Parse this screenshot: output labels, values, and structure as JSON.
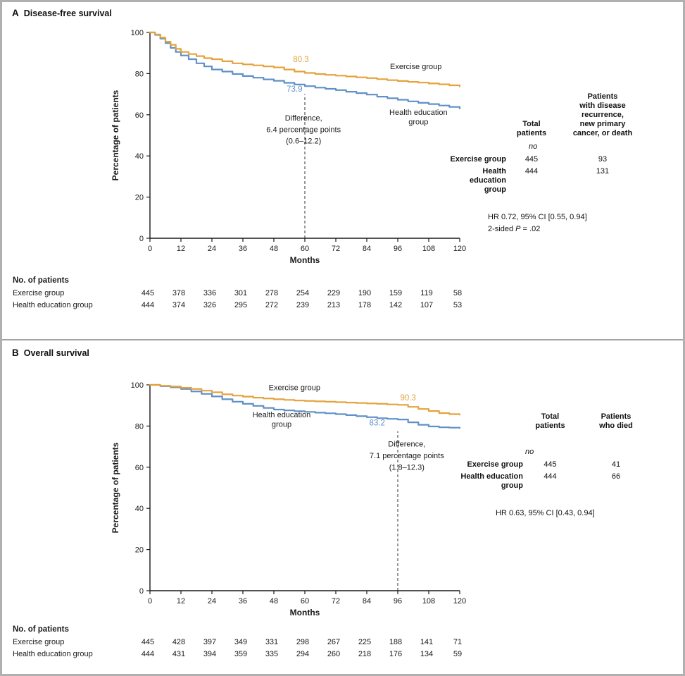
{
  "figure": {
    "title_a_letter": "A",
    "title_a": "Disease-free survival",
    "title_b_letter": "B",
    "title_b": "Overall survival"
  },
  "colors": {
    "exercise": "#E5A23C",
    "health": "#6090C7",
    "axis": "#1a1a1a",
    "dashed": "#555555"
  },
  "chart_data": [
    {
      "type": "line",
      "panel": "A",
      "title": "Disease-free survival",
      "xlabel": "Months",
      "ylabel": "Percentage of patients",
      "xlim": [
        0,
        120
      ],
      "ylim": [
        0,
        100
      ],
      "xticks": [
        0,
        12,
        24,
        36,
        48,
        60,
        72,
        84,
        96,
        108,
        120
      ],
      "yticks": [
        0,
        20,
        40,
        60,
        80,
        100
      ],
      "grid": false,
      "legend_position": "inline-annotations",
      "series": [
        {
          "name": "Exercise group",
          "color_key": "exercise",
          "step": true,
          "points": [
            [
              0,
              100
            ],
            [
              2,
              99
            ],
            [
              4,
              97.5
            ],
            [
              6,
              95.5
            ],
            [
              8,
              94
            ],
            [
              10,
              92
            ],
            [
              12,
              90.5
            ],
            [
              15,
              89.5
            ],
            [
              18,
              88.5
            ],
            [
              21,
              87.5
            ],
            [
              24,
              87
            ],
            [
              28,
              86
            ],
            [
              32,
              85
            ],
            [
              36,
              84.5
            ],
            [
              40,
              84
            ],
            [
              44,
              83.5
            ],
            [
              48,
              83
            ],
            [
              52,
              82
            ],
            [
              56,
              81
            ],
            [
              60,
              80.3
            ],
            [
              64,
              79.8
            ],
            [
              68,
              79.4
            ],
            [
              72,
              79
            ],
            [
              76,
              78.6
            ],
            [
              80,
              78.2
            ],
            [
              84,
              77.8
            ],
            [
              88,
              77.3
            ],
            [
              92,
              76.8
            ],
            [
              96,
              76.4
            ],
            [
              100,
              76
            ],
            [
              104,
              75.6
            ],
            [
              108,
              75.2
            ],
            [
              112,
              74.8
            ],
            [
              116,
              74.3
            ],
            [
              120,
              73.8
            ]
          ]
        },
        {
          "name": "Health education group",
          "color_key": "health",
          "step": true,
          "points": [
            [
              0,
              100
            ],
            [
              2,
              98.8
            ],
            [
              4,
              97
            ],
            [
              6,
              94.8
            ],
            [
              8,
              92.5
            ],
            [
              10,
              90.5
            ],
            [
              12,
              88.8
            ],
            [
              15,
              87
            ],
            [
              18,
              85
            ],
            [
              21,
              83.5
            ],
            [
              24,
              82
            ],
            [
              28,
              81
            ],
            [
              32,
              79.8
            ],
            [
              36,
              78.8
            ],
            [
              40,
              78
            ],
            [
              44,
              77.2
            ],
            [
              48,
              76.5
            ],
            [
              52,
              75.5
            ],
            [
              56,
              74.7
            ],
            [
              60,
              73.9
            ],
            [
              64,
              73.2
            ],
            [
              68,
              72.6
            ],
            [
              72,
              72
            ],
            [
              76,
              71.2
            ],
            [
              80,
              70.5
            ],
            [
              84,
              69.8
            ],
            [
              88,
              68.8
            ],
            [
              92,
              68
            ],
            [
              96,
              67.3
            ],
            [
              100,
              66.5
            ],
            [
              104,
              65.8
            ],
            [
              108,
              65.2
            ],
            [
              112,
              64.5
            ],
            [
              116,
              63.8
            ],
            [
              120,
              63
            ]
          ]
        }
      ],
      "dashed_line": {
        "month": 60,
        "from_pct": 0,
        "to_pct": 70
      },
      "annotations": [
        {
          "text": "80.3",
          "month": 58.5,
          "pct": 85.6,
          "color_key": "exercise"
        },
        {
          "text": "73.9",
          "month": 56,
          "pct": 71.2,
          "color_key": "health"
        },
        {
          "text": "Exercise group",
          "month": 103,
          "pct": 82.2
        },
        {
          "text": "Health education",
          "month": 104,
          "pct": 60
        },
        {
          "text": "group",
          "month": 104,
          "pct": 55.3
        },
        {
          "text": "Difference,",
          "month": 59.5,
          "pct": 57.2
        },
        {
          "text": "6.4 percentage points",
          "month": 59.5,
          "pct": 51.6
        },
        {
          "text": "(0.6–12.2)",
          "month": 59.5,
          "pct": 46
        }
      ]
    },
    {
      "type": "line",
      "panel": "B",
      "title": "Overall survival",
      "xlabel": "Months",
      "ylabel": "Percentage of patients",
      "xlim": [
        0,
        120
      ],
      "ylim": [
        0,
        100
      ],
      "xticks": [
        0,
        12,
        24,
        36,
        48,
        60,
        72,
        84,
        96,
        108,
        120
      ],
      "yticks": [
        0,
        20,
        40,
        60,
        80,
        100
      ],
      "grid": false,
      "legend_position": "inline-annotations",
      "series": [
        {
          "name": "Exercise group",
          "color_key": "exercise",
          "step": true,
          "points": [
            [
              0,
              100
            ],
            [
              4,
              99.6
            ],
            [
              8,
              99.2
            ],
            [
              12,
              98.6
            ],
            [
              16,
              98
            ],
            [
              20,
              97.2
            ],
            [
              24,
              96.4
            ],
            [
              28,
              95.4
            ],
            [
              32,
              94.8
            ],
            [
              36,
              94.3
            ],
            [
              40,
              93.8
            ],
            [
              44,
              93.4
            ],
            [
              48,
              93
            ],
            [
              52,
              92.7
            ],
            [
              56,
              92.4
            ],
            [
              60,
              92.2
            ],
            [
              64,
              92
            ],
            [
              68,
              91.8
            ],
            [
              72,
              91.6
            ],
            [
              76,
              91.4
            ],
            [
              80,
              91.2
            ],
            [
              84,
              91
            ],
            [
              88,
              90.8
            ],
            [
              92,
              90.5
            ],
            [
              96,
              90.3
            ],
            [
              100,
              89.3
            ],
            [
              104,
              88.3
            ],
            [
              108,
              87.3
            ],
            [
              112,
              86.3
            ],
            [
              116,
              85.8
            ],
            [
              120,
              85.5
            ]
          ]
        },
        {
          "name": "Health education group",
          "color_key": "health",
          "step": true,
          "points": [
            [
              0,
              100
            ],
            [
              4,
              99.4
            ],
            [
              8,
              98.8
            ],
            [
              12,
              98
            ],
            [
              16,
              96.8
            ],
            [
              20,
              95.6
            ],
            [
              24,
              94.4
            ],
            [
              28,
              93
            ],
            [
              32,
              91.8
            ],
            [
              36,
              90.8
            ],
            [
              40,
              89.8
            ],
            [
              44,
              88.8
            ],
            [
              48,
              88
            ],
            [
              52,
              87.6
            ],
            [
              56,
              87.2
            ],
            [
              60,
              86.9
            ],
            [
              64,
              86.5
            ],
            [
              68,
              86.2
            ],
            [
              72,
              85.8
            ],
            [
              76,
              85.3
            ],
            [
              80,
              84.8
            ],
            [
              84,
              84.3
            ],
            [
              88,
              83.8
            ],
            [
              92,
              83.5
            ],
            [
              96,
              83.2
            ],
            [
              100,
              81.8
            ],
            [
              104,
              80.6
            ],
            [
              108,
              79.8
            ],
            [
              112,
              79.4
            ],
            [
              116,
              79.2
            ],
            [
              120,
              79
            ]
          ]
        }
      ],
      "dashed_line": {
        "month": 96,
        "from_pct": 0,
        "to_pct": 77.5
      },
      "annotations": [
        {
          "text": "Exercise group",
          "month": 56,
          "pct": 97.5
        },
        {
          "text": "90.3",
          "month": 100,
          "pct": 92.5,
          "color_key": "exercise"
        },
        {
          "text": "Health education",
          "month": 51,
          "pct": 84.3
        },
        {
          "text": "group",
          "month": 51,
          "pct": 79.6
        },
        {
          "text": "83.2",
          "month": 88,
          "pct": 80.3,
          "color_key": "health"
        },
        {
          "text": "Difference,",
          "month": 99.5,
          "pct": 70
        },
        {
          "text": "7.1 percentage points",
          "month": 99.5,
          "pct": 64.4
        },
        {
          "text": "(1.8–12.3)",
          "month": 99.5,
          "pct": 58.8
        }
      ]
    }
  ],
  "panels": [
    {
      "side_table": {
        "col1_header": "Total\npatients",
        "col2_header": "Patients\nwith disease\nrecurrence,\nnew primary\ncancer, or death",
        "unit": "no",
        "rows": [
          {
            "label": "Exercise group",
            "col1": "445",
            "col2": "93"
          },
          {
            "label": "Health education\ngroup",
            "col1": "444",
            "col2": "131"
          }
        ],
        "stat_line1": "HR 0.72, 95% CI [0.55, 0.94]",
        "stat_line2_pre": "2-sided ",
        "stat_line2_italic": "P",
        "stat_line2_post": " = .02"
      },
      "risk_table": {
        "heading": "No. of patients",
        "rows": [
          {
            "label": "Exercise group",
            "values": [
              "445",
              "378",
              "336",
              "301",
              "278",
              "254",
              "229",
              "190",
              "159",
              "119",
              "58"
            ]
          },
          {
            "label": "Health education group",
            "values": [
              "444",
              "374",
              "326",
              "295",
              "272",
              "239",
              "213",
              "178",
              "142",
              "107",
              "53"
            ]
          }
        ]
      }
    },
    {
      "side_table": {
        "col1_header": "Total\npatients",
        "col2_header": "Patients\nwho died",
        "unit": "no",
        "rows": [
          {
            "label": "Exercise group",
            "col1": "445",
            "col2": "41"
          },
          {
            "label": "Health education\ngroup",
            "col1": "444",
            "col2": "66"
          }
        ],
        "stat_line1": "HR 0.63, 95% CI [0.43, 0.94]",
        "stat_line2_pre": "",
        "stat_line2_italic": "",
        "stat_line2_post": ""
      },
      "risk_table": {
        "heading": "No. of patients",
        "rows": [
          {
            "label": "Exercise group",
            "values": [
              "445",
              "428",
              "397",
              "349",
              "331",
              "298",
              "267",
              "225",
              "188",
              "141",
              "71"
            ]
          },
          {
            "label": "Health education group",
            "values": [
              "444",
              "431",
              "394",
              "359",
              "335",
              "294",
              "260",
              "218",
              "176",
              "134",
              "59"
            ]
          }
        ]
      }
    }
  ]
}
